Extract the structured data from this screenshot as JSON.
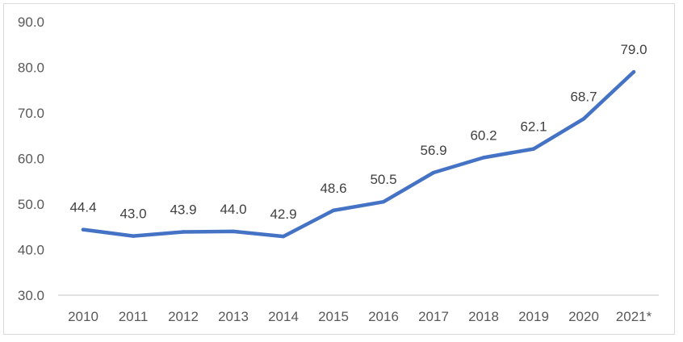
{
  "chart_data": {
    "type": "line",
    "title": "",
    "xlabel": "",
    "ylabel": "",
    "categories": [
      "2010",
      "2011",
      "2012",
      "2013",
      "2014",
      "2015",
      "2016",
      "2017",
      "2018",
      "2019",
      "2020",
      "2021*"
    ],
    "series": [
      {
        "name": "",
        "color": "#4472C4",
        "values": [
          44.4,
          43.0,
          43.9,
          44.0,
          42.9,
          48.6,
          50.5,
          56.9,
          60.2,
          62.1,
          68.7,
          79.0
        ],
        "labels": [
          "44.4",
          "43.0",
          "43.9",
          "44.0",
          "42.9",
          "48.6",
          "50.5",
          "56.9",
          "60.2",
          "62.1",
          "68.7",
          "79.0"
        ]
      }
    ],
    "ylim": [
      30,
      90
    ],
    "yticks": [
      30,
      40,
      50,
      60,
      70,
      80,
      90
    ],
    "ytick_labels": [
      "30.0",
      "40.0",
      "50.0",
      "60.0",
      "70.0",
      "80.0",
      "90.0"
    ],
    "grid": false,
    "legend": "none"
  }
}
